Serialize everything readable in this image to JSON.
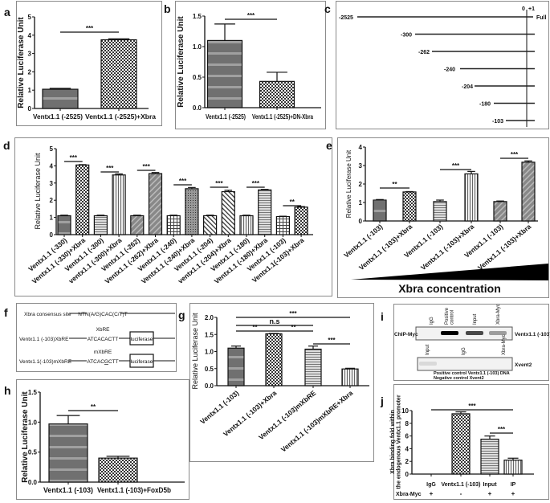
{
  "panel_labels": {
    "a": "a",
    "b": "b",
    "c": "c",
    "d": "d",
    "e": "e",
    "f": "f",
    "g": "g",
    "h": "h",
    "i": "i",
    "j": "j"
  },
  "chart_data": [
    {
      "panel": "a",
      "type": "bar",
      "ylabel": "Relative Luciferase Unit",
      "ylim": [
        0,
        5
      ],
      "yticks": [
        0,
        1,
        2,
        3,
        4,
        5
      ],
      "ytick_labels": [
        "0",
        "1",
        "2",
        "3",
        "4",
        "5"
      ],
      "categories": [
        "Ventx1.1 (-2525)",
        "Ventx1.1 (-2525)+Xbra"
      ],
      "values": [
        1.05,
        3.75
      ],
      "errors": [
        0.05,
        0.05
      ],
      "significance": [
        {
          "from": 0,
          "to": 1,
          "label": "***"
        }
      ]
    },
    {
      "panel": "b",
      "type": "bar",
      "ylabel": "Relative Luciferase Unit",
      "ylim": [
        0,
        1.5
      ],
      "yticks": [
        0,
        0.5,
        1.0,
        1.5
      ],
      "ytick_labels": [
        "0.0",
        "0.5",
        "1.0",
        "1.5"
      ],
      "categories": [
        "Ventx1.1 (-2525)",
        "Ventx1.1 (-2525)+DN-Xbra"
      ],
      "values": [
        1.1,
        0.43
      ],
      "errors": [
        0.27,
        0.15
      ],
      "significance": [
        {
          "from": 0,
          "to": 1,
          "label": "***"
        }
      ]
    },
    {
      "panel": "d",
      "type": "bar",
      "ylabel": "Relative Luciferase Unit",
      "ylim": [
        0,
        5
      ],
      "yticks": [
        0,
        1,
        2,
        3,
        4,
        5
      ],
      "ytick_labels": [
        "0",
        "1",
        "2",
        "3",
        "4",
        "5"
      ],
      "categories": [
        "Ventx1.1 (-330)",
        "Ventx1.1 (-330)+Xbra",
        "Ventx1.1 (-300)",
        "ventx1.1 (-300)+Xbra",
        "Ventx1.1 (-262)",
        "Ventx1.1 (-262)+Xbra",
        "Ventx1.1 (-240)",
        "Ventx1.1 (-240)+Xbra",
        "Ventx1.1 (-204)",
        "ventx1.1 (-204)+Xbra",
        "Ventx1.1 (-180)",
        "Ventx1.1 (-180)+Xbra",
        "Ventx1.1 (-103)",
        "Ventx1.1(-103)+Xbra"
      ],
      "values": [
        1.1,
        4.05,
        1.1,
        3.47,
        1.1,
        3.55,
        1.1,
        2.67,
        1.1,
        2.5,
        1.1,
        2.6,
        1.05,
        1.6
      ],
      "errors": [
        0.03,
        0.02,
        0.03,
        0.06,
        0.03,
        0.06,
        0.03,
        0.07,
        0.03,
        0.08,
        0.03,
        0.03,
        0.02,
        0.03
      ],
      "significance": [
        {
          "from": 0,
          "to": 1,
          "label": "***"
        },
        {
          "from": 2,
          "to": 3,
          "label": "***"
        },
        {
          "from": 4,
          "to": 5,
          "label": "***"
        },
        {
          "from": 6,
          "to": 7,
          "label": "***"
        },
        {
          "from": 8,
          "to": 9,
          "label": "***"
        },
        {
          "from": 10,
          "to": 11,
          "label": "***"
        },
        {
          "from": 12,
          "to": 13,
          "label": "**"
        }
      ]
    },
    {
      "panel": "e",
      "type": "bar",
      "ylabel": "Relative Luciferase Unit",
      "ylim": [
        0,
        4
      ],
      "yticks": [
        0,
        1,
        2,
        3,
        4
      ],
      "ytick_labels": [
        "0",
        "1",
        "2",
        "3",
        "4"
      ],
      "categories": [
        "Ventx1.1 (-103)",
        "Ventx1.1 (-103)+Xbra",
        "Ventx1.1 (-103)",
        "Ventx1.1 (-103)+Xbra",
        "Ventx1.1 (-103)",
        "Ventx1.1 (-103)+Xbra"
      ],
      "values": [
        1.13,
        1.57,
        1.05,
        2.55,
        1.05,
        3.18
      ],
      "errors": [
        0.03,
        0.02,
        0.08,
        0.13,
        0.03,
        0.07
      ],
      "significance": [
        {
          "from": 0,
          "to": 1,
          "label": "**"
        },
        {
          "from": 2,
          "to": 3,
          "label": "***"
        },
        {
          "from": 4,
          "to": 5,
          "label": "***"
        }
      ],
      "xlabel": "Xbra concentration"
    },
    {
      "panel": "g",
      "type": "bar",
      "ylabel": "Relative Luciferase Unit",
      "ylim": [
        0,
        2
      ],
      "yticks": [
        0,
        0.5,
        1.0,
        1.5,
        2.0
      ],
      "ytick_labels": [
        "0.0",
        "0.5",
        "1.0",
        "1.5",
        "2.0"
      ],
      "categories": [
        "Ventx1.1 (-103)",
        "Ventx1.1 (-103)+Xbra",
        "Ventx1.1 (-103)mXbRE",
        "Ventx1.1 (-103)mXbRE+Xbra"
      ],
      "values": [
        1.1,
        1.52,
        1.07,
        0.49
      ],
      "errors": [
        0.06,
        0.01,
        0.09,
        0.02
      ],
      "significance": [
        {
          "from": 0,
          "to": 3,
          "label": "***"
        },
        {
          "from": 0,
          "to": 2,
          "label": "n.s"
        },
        {
          "from": 0,
          "to": 1,
          "label": "**"
        },
        {
          "from": 1,
          "to": 2,
          "label": "**"
        },
        {
          "from": 2,
          "to": 3,
          "label": "***"
        }
      ]
    },
    {
      "panel": "h",
      "type": "bar",
      "ylabel": "Relative Luciferase Unit",
      "ylim": [
        0,
        1.5
      ],
      "yticks": [
        0,
        0.5,
        1.0,
        1.5
      ],
      "ytick_labels": [
        "0.0",
        "0.5",
        "1.0",
        "1.5"
      ],
      "categories": [
        "Ventx1.1 (-103)",
        "Ventx1.1 (-103)+FoxD5b"
      ],
      "values": [
        0.97,
        0.4
      ],
      "errors": [
        0.14,
        0.03
      ],
      "significance": [
        {
          "from": 0,
          "to": 1,
          "label": "**"
        }
      ]
    },
    {
      "panel": "j",
      "type": "bar",
      "ylabel": "Xbra binding fold within the endogenous Ventx1.1 promoter",
      "ylim": [
        0,
        10
      ],
      "yticks": [
        0,
        2,
        4,
        6,
        8,
        10
      ],
      "ytick_labels": [
        "0",
        "2",
        "4",
        "6",
        "8",
        "10"
      ],
      "categories": [
        "IgG",
        "Ventx1.1 (-103)",
        "Input",
        "IP"
      ],
      "values": [
        0,
        9.5,
        5.5,
        2.2
      ],
      "errors": [
        0,
        0.3,
        0.5,
        0.3
      ],
      "significance": [
        {
          "from": 0,
          "to": 3,
          "label": "***"
        },
        {
          "from": 2,
          "to": 3,
          "label": "***"
        }
      ],
      "row_label": "Xbra-Myc",
      "row_values": [
        "+",
        "-",
        "+",
        "+"
      ]
    }
  ],
  "panel_c": {
    "markers": [
      "0",
      "+1"
    ],
    "constructs": [
      {
        "label": "-2525",
        "end_label": "Full"
      },
      {
        "label": "-300"
      },
      {
        "label": "-262"
      },
      {
        "label": "-240"
      },
      {
        "label": "-204"
      },
      {
        "label": "-180"
      },
      {
        "label": "-103"
      }
    ]
  },
  "panel_f": {
    "rows": [
      {
        "name": "Xbra consensus site",
        "site_title": "",
        "sequence": "NTN(A/G)CAC(C/T)T",
        "reporter": ""
      },
      {
        "name": "Ventx1.1 (-103)XbRE",
        "site_title": "XbRE",
        "sequence": "ATCACACTT",
        "reporter": "luciferase"
      },
      {
        "name": "Ventx1.1(-103)mXbRE",
        "site_title": "mXbRE",
        "sequence_prefix": "ATCAC",
        "sequence_mut": "G",
        "sequence_suffix": "CTT",
        "reporter": "luciferase"
      }
    ]
  },
  "panel_i": {
    "gel1": {
      "lanes": [
        "IgG",
        "Positive control",
        "Input",
        "Xbra-Myc"
      ],
      "left_label": "ChIP-Myc",
      "right_label": "Ventx1.1 (-103)",
      "band_intensity": [
        0,
        1.0,
        0.7,
        0.35
      ]
    },
    "gel2": {
      "lanes": [
        "Input",
        "IgG",
        "Xbra-Myc"
      ],
      "right_label": "Xvent2",
      "band_intensity": [
        0.1,
        0,
        0
      ]
    },
    "notes": [
      "Positive control Ventx1.1 (-103) DNA",
      "Negative control Xvent2"
    ]
  }
}
